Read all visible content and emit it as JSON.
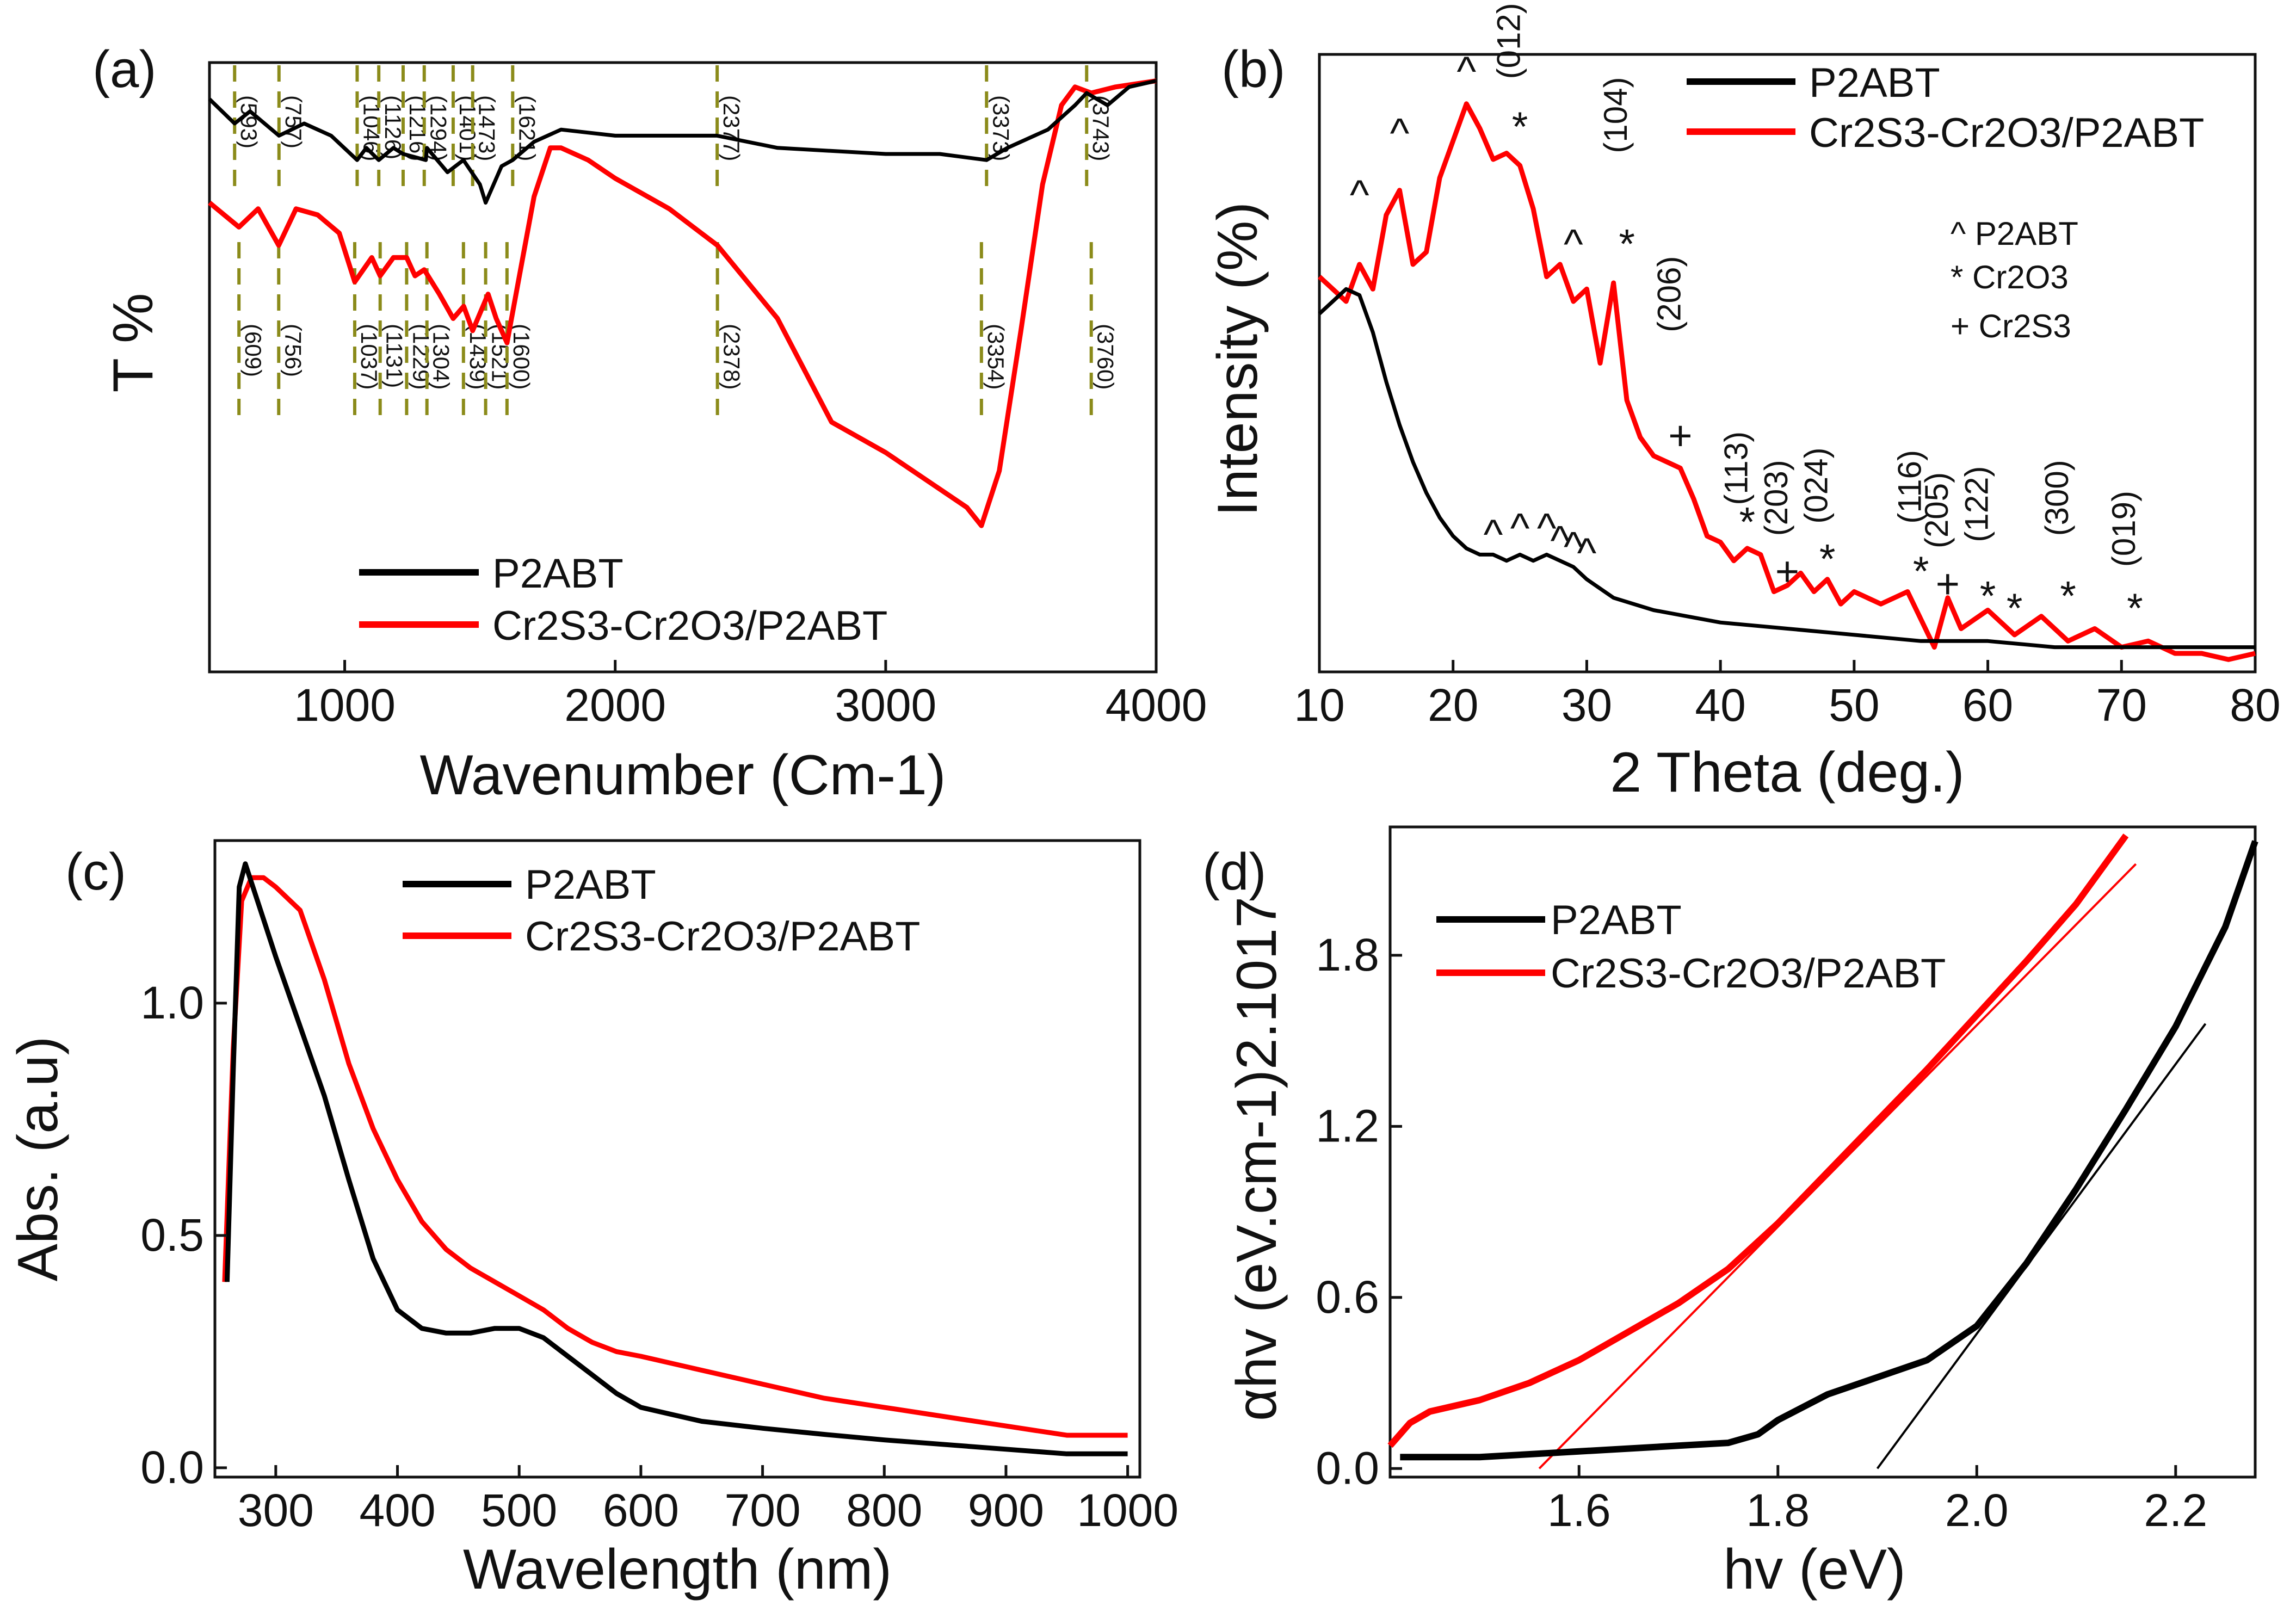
{
  "colors": {
    "p2abt": "#000000",
    "composite": "#ff0000",
    "marker": "#8b8b1a"
  },
  "legend": {
    "p2abt": "P2ABT",
    "composite": "Cr2S3-Cr2O3/P2ABT"
  },
  "chart_data": [
    {
      "id": "a",
      "type": "line",
      "panel_label": "(a)",
      "xlabel": "Wavenumber (Cm-1)",
      "ylabel": "T %",
      "xlim": [
        500,
        4000
      ],
      "ylim": [
        0,
        100
      ],
      "xticks": [
        1000,
        2000,
        3000,
        4000
      ],
      "tick_labels": [
        "1000",
        "2000",
        "3000",
        "4000"
      ],
      "series": [
        {
          "name": "P2ABT",
          "color": "#000000",
          "x": [
            500,
            593,
            650,
            757,
            850,
            950,
            1046,
            1080,
            1126,
            1180,
            1216,
            1300,
            1304,
            1380,
            1439,
            1500,
            1521,
            1580,
            1621,
            1700,
            1800,
            2000,
            2377,
            2600,
            3000,
            3200,
            3373,
            3450,
            3600,
            3700,
            3743,
            3820,
            3900,
            4000
          ],
          "y": [
            94,
            90,
            92,
            88,
            90,
            88,
            84,
            86,
            84,
            86,
            85,
            84,
            86,
            82,
            84,
            80,
            77,
            83,
            84,
            87,
            89,
            88,
            88,
            86,
            85,
            85,
            84,
            86,
            89,
            93,
            95,
            93,
            96,
            97
          ]
        },
        {
          "name": "Cr2S3-Cr2O3/P2ABT",
          "color": "#ff0000",
          "x": [
            500,
            609,
            680,
            756,
            820,
            900,
            980,
            1037,
            1100,
            1131,
            1180,
            1229,
            1260,
            1294,
            1350,
            1401,
            1440,
            1473,
            1530,
            1560,
            1600,
            1650,
            1700,
            1760,
            1800,
            1900,
            2000,
            2200,
            2378,
            2600,
            2800,
            3000,
            3200,
            3300,
            3354,
            3420,
            3500,
            3580,
            3650,
            3700,
            3760,
            3850,
            4000
          ],
          "y": [
            77,
            73,
            76,
            70,
            76,
            75,
            72,
            64,
            68,
            65,
            68,
            68,
            65,
            66,
            62,
            58,
            60,
            56,
            62,
            58,
            54,
            66,
            78,
            86,
            86,
            84,
            81,
            76,
            70,
            58,
            41,
            36,
            30,
            27,
            24,
            33,
            56,
            80,
            93,
            96,
            95,
            96,
            97
          ]
        }
      ],
      "peak_markers": {
        "x": [
          593,
          609,
          757,
          756,
          1046,
          1037,
          1126,
          1131,
          1216,
          1229,
          1294,
          1304,
          1401,
          1439,
          1473,
          1521,
          1621,
          1600,
          2377,
          2378,
          3373,
          3354,
          3743,
          3760
        ],
        "labels": [
          "(593)",
          "(609)",
          "(757)",
          "(756)",
          "(1046)",
          "(1037)",
          "(1126)",
          "(1131)",
          "(1216)",
          "(1229)",
          "(1294)",
          "(1304)",
          "(1401)",
          "(1439)",
          "(1473)",
          "(1521)",
          "(1621)",
          "(1600)",
          "(2377)",
          "(2378)",
          "(3373)",
          "(3354)",
          "(3743)",
          "(3760)"
        ]
      }
    },
    {
      "id": "b",
      "type": "line",
      "panel_label": "(b)",
      "xlabel": "2 Theta (deg.)",
      "ylabel": "Intensity (%)",
      "xlim": [
        10,
        80
      ],
      "ylim": [
        0,
        100
      ],
      "xticks": [
        10,
        20,
        30,
        40,
        50,
        60,
        70,
        80
      ],
      "tick_labels": [
        "10",
        "20",
        "30",
        "40",
        "50",
        "60",
        "70",
        "80"
      ],
      "series": [
        {
          "name": "P2ABT",
          "color": "#000000",
          "x": [
            10,
            11,
            12,
            13,
            14,
            15,
            16,
            17,
            18,
            19,
            20,
            21,
            22,
            23,
            24,
            25,
            26,
            27,
            28,
            29,
            30,
            32,
            35,
            40,
            45,
            50,
            55,
            60,
            65,
            70,
            75,
            80
          ],
          "y": [
            58,
            60,
            62,
            61,
            55,
            47,
            40,
            34,
            29,
            25,
            22,
            20,
            19,
            19,
            18,
            19,
            18,
            19,
            18,
            17,
            15,
            12,
            10,
            8,
            7,
            6,
            5,
            5,
            4,
            4,
            4,
            4
          ]
        },
        {
          "name": "Cr2S3-Cr2O3/P2ABT",
          "color": "#ff0000",
          "x": [
            10,
            11,
            12,
            13,
            14,
            15,
            16,
            17,
            18,
            19,
            20,
            21,
            22,
            23,
            24,
            25,
            26,
            27,
            28,
            29,
            30,
            31,
            32,
            33,
            34,
            35,
            36,
            37,
            38,
            39,
            40,
            41,
            42,
            43,
            44,
            45,
            46,
            47,
            48,
            49,
            50,
            52,
            54,
            56,
            57,
            58,
            60,
            62,
            64,
            66,
            68,
            70,
            72,
            74,
            76,
            78,
            80
          ],
          "y": [
            64,
            62,
            60,
            66,
            62,
            74,
            78,
            66,
            68,
            80,
            86,
            92,
            88,
            83,
            84,
            82,
            75,
            64,
            66,
            60,
            62,
            50,
            63,
            44,
            38,
            35,
            34,
            33,
            28,
            22,
            21,
            18,
            20,
            19,
            13,
            14,
            16,
            13,
            15,
            11,
            13,
            11,
            13,
            4,
            12,
            7,
            10,
            6,
            9,
            5,
            7,
            4,
            5,
            3,
            3,
            2,
            3
          ]
        }
      ],
      "annotations": {
        "labels": [
          "^",
          "^",
          "^",
          "^",
          "^",
          "^",
          "^",
          "^",
          "^",
          "^",
          "*",
          "*",
          "*",
          "*",
          "*",
          "*",
          "*",
          "*",
          "*",
          "+",
          "+",
          "+",
          "(012)",
          "(104)",
          "(206)",
          "(113)",
          "(203)",
          "(024)",
          "(116)",
          "(205)",
          "(122)",
          "(300)",
          "(019)"
        ],
        "x": [
          13,
          16,
          21,
          29,
          23,
          25,
          27,
          28,
          29,
          30,
          25,
          33,
          42,
          48,
          55,
          60,
          66,
          71,
          62,
          37,
          45,
          57,
          25,
          33,
          37,
          42,
          45,
          48,
          55,
          57,
          60,
          66,
          71
        ],
        "y": [
          75,
          85,
          95,
          67,
          20,
          21,
          21,
          19,
          18,
          17,
          86,
          67,
          22,
          16,
          14,
          10,
          10,
          8,
          8,
          36,
          14,
          12,
          96,
          84,
          55,
          27,
          22,
          24,
          24,
          20,
          21,
          22,
          17
        ]
      },
      "notes": {
        "p2abt": "^ P2ABT",
        "cr2o3": "* Cr2O3",
        "cr2s3": "+ Cr2S3"
      }
    },
    {
      "id": "c",
      "type": "line",
      "panel_label": "(c)",
      "xlabel": "Wavelength (nm)",
      "ylabel": "Abs. (a.u)",
      "xlim": [
        250,
        1010
      ],
      "ylim": [
        -0.02,
        1.35
      ],
      "xticks": [
        300,
        400,
        500,
        600,
        700,
        800,
        900,
        1000
      ],
      "tick_labels": [
        "300",
        "400",
        "500",
        "600",
        "700",
        "800",
        "900",
        "1000"
      ],
      "yticks": [
        0.0,
        0.5,
        1.0
      ],
      "ytick_labels": [
        "0.0",
        "0.5",
        "1.0"
      ],
      "series": [
        {
          "name": "P2ABT",
          "color": "#000000",
          "x": [
            260,
            265,
            270,
            275,
            280,
            290,
            300,
            320,
            340,
            360,
            380,
            400,
            420,
            440,
            460,
            480,
            500,
            520,
            540,
            560,
            580,
            600,
            650,
            700,
            750,
            800,
            850,
            900,
            950,
            1000
          ],
          "y": [
            0.4,
            0.85,
            1.25,
            1.3,
            1.26,
            1.18,
            1.1,
            0.95,
            0.8,
            0.62,
            0.45,
            0.34,
            0.3,
            0.29,
            0.29,
            0.3,
            0.3,
            0.28,
            0.24,
            0.2,
            0.16,
            0.13,
            0.1,
            0.085,
            0.072,
            0.06,
            0.05,
            0.04,
            0.03,
            0.03
          ]
        },
        {
          "name": "Cr2S3-Cr2O3/P2ABT",
          "color": "#ff0000",
          "x": [
            258,
            265,
            272,
            280,
            290,
            300,
            320,
            340,
            360,
            380,
            400,
            420,
            440,
            460,
            480,
            500,
            520,
            540,
            560,
            580,
            600,
            650,
            700,
            750,
            800,
            850,
            900,
            950,
            1000
          ],
          "y": [
            0.4,
            0.9,
            1.22,
            1.27,
            1.27,
            1.25,
            1.2,
            1.05,
            0.87,
            0.73,
            0.62,
            0.53,
            0.47,
            0.43,
            0.4,
            0.37,
            0.34,
            0.3,
            0.27,
            0.25,
            0.24,
            0.21,
            0.18,
            0.15,
            0.13,
            0.11,
            0.09,
            0.07,
            0.07
          ]
        }
      ]
    },
    {
      "id": "d",
      "type": "line",
      "panel_label": "(d)",
      "xlabel": "hv (eV)",
      "ylabel": "αhv (eV.cm-1)2.1017",
      "xlim": [
        1.41,
        2.28
      ],
      "ylim": [
        -0.03,
        2.25
      ],
      "xticks": [
        1.6,
        1.8,
        2.0,
        2.2
      ],
      "tick_labels": [
        "1.6",
        "1.8",
        "2.0",
        "2.2"
      ],
      "yticks": [
        0.0,
        0.6,
        1.2,
        1.8
      ],
      "ytick_labels": [
        "0.0",
        "0.6",
        "1.2",
        "1.8"
      ],
      "series": [
        {
          "name": "P2ABT",
          "color": "#000000",
          "x": [
            1.42,
            1.5,
            1.6,
            1.7,
            1.75,
            1.78,
            1.8,
            1.85,
            1.9,
            1.95,
            2.0,
            2.05,
            2.1,
            2.15,
            2.2,
            2.25,
            2.28
          ],
          "y": [
            0.04,
            0.04,
            0.06,
            0.08,
            0.09,
            0.12,
            0.17,
            0.26,
            0.32,
            0.38,
            0.5,
            0.72,
            0.98,
            1.26,
            1.55,
            1.9,
            2.2
          ]
        },
        {
          "name": "Cr2S3-Cr2O3/P2ABT",
          "color": "#ff0000",
          "x": [
            1.41,
            1.43,
            1.45,
            1.5,
            1.55,
            1.6,
            1.65,
            1.7,
            1.75,
            1.8,
            1.85,
            1.9,
            1.95,
            2.0,
            2.05,
            2.1,
            2.15
          ],
          "y": [
            0.08,
            0.16,
            0.2,
            0.24,
            0.3,
            0.38,
            0.48,
            0.58,
            0.7,
            0.86,
            1.04,
            1.22,
            1.4,
            1.59,
            1.78,
            1.98,
            2.22
          ]
        }
      ],
      "fit_lines": [
        {
          "name": "P2ABT fit",
          "color": "#000000",
          "x": [
            1.9,
            2.23
          ],
          "y": [
            0.0,
            1.56
          ]
        },
        {
          "name": "Cr2S3-Cr2O3/P2ABT fit",
          "color": "#ff0000",
          "x": [
            1.56,
            2.16
          ],
          "y": [
            0.0,
            2.12
          ]
        }
      ]
    }
  ]
}
